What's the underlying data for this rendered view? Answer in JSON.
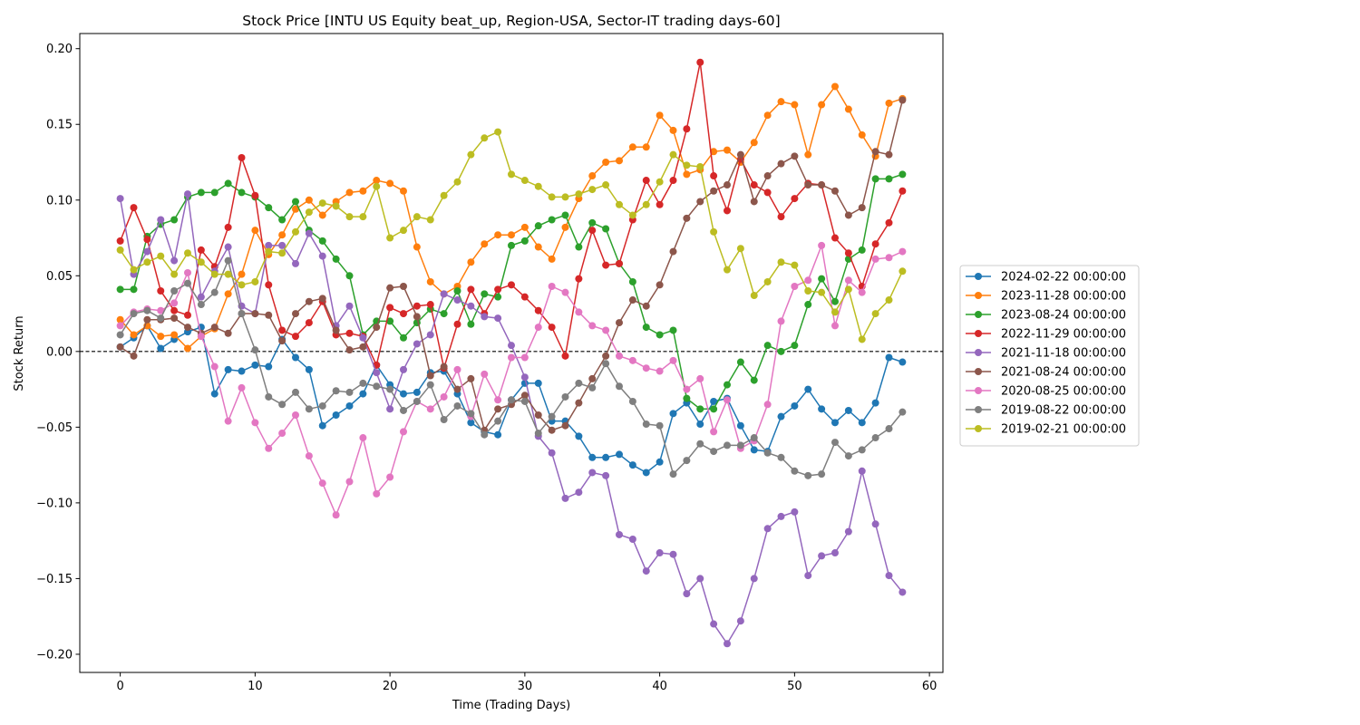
{
  "chart_data": {
    "type": "line",
    "title": "Stock Price [INTU US Equity beat_up, Region-USA, Sector-IT trading days-60]",
    "xlabel": "Time (Trading Days)",
    "ylabel": "Stock Return",
    "xlim": [
      -3,
      61
    ],
    "ylim": [
      -0.212,
      0.21
    ],
    "xticks": [
      0,
      10,
      20,
      30,
      40,
      50,
      60
    ],
    "yticks": [
      -0.2,
      -0.15,
      -0.1,
      -0.05,
      0.0,
      0.05,
      0.1,
      0.15,
      0.2
    ],
    "ytick_labels": [
      "−0.20",
      "−0.15",
      "−0.10",
      "−0.05",
      "0.00",
      "0.05",
      "0.10",
      "0.15",
      "0.20"
    ],
    "grid": false,
    "reference_line": 0,
    "legend_position": "center-right-outside",
    "series": [
      {
        "name": "2024-02-22 00:00:00",
        "color": "#1f77b4",
        "values": [
          0.003,
          0.009,
          0.017,
          0.002,
          0.008,
          0.013,
          0.016,
          -0.028,
          -0.012,
          -0.013,
          -0.009,
          -0.01,
          0.008,
          -0.004,
          -0.012,
          -0.049,
          -0.042,
          -0.036,
          -0.028,
          -0.009,
          -0.022,
          -0.028,
          -0.027,
          -0.014,
          -0.013,
          -0.028,
          -0.047,
          -0.053,
          -0.055,
          -0.032,
          -0.021,
          -0.021,
          -0.046,
          -0.046,
          -0.056,
          -0.07,
          -0.07,
          -0.068,
          -0.075,
          -0.08,
          -0.073,
          -0.041,
          -0.034,
          -0.048,
          -0.033,
          -0.031,
          -0.049,
          -0.065,
          -0.066,
          -0.043,
          -0.036,
          -0.025,
          -0.038,
          -0.047,
          -0.039,
          -0.047,
          -0.034,
          -0.004,
          -0.007
        ]
      },
      {
        "name": "2023-11-28 00:00:00",
        "color": "#ff7f0e",
        "values": [
          0.021,
          0.011,
          0.017,
          0.01,
          0.011,
          0.002,
          0.01,
          0.015,
          0.038,
          0.051,
          0.08,
          0.064,
          0.077,
          0.094,
          0.1,
          0.09,
          0.099,
          0.105,
          0.106,
          0.113,
          0.111,
          0.106,
          0.069,
          0.046,
          0.038,
          0.043,
          0.059,
          0.071,
          0.077,
          0.077,
          0.082,
          0.069,
          0.061,
          0.082,
          0.101,
          0.116,
          0.125,
          0.126,
          0.135,
          0.135,
          0.156,
          0.146,
          0.117,
          0.12,
          0.132,
          0.133,
          0.125,
          0.138,
          0.156,
          0.165,
          0.163,
          0.13,
          0.163,
          0.175,
          0.16,
          0.143,
          0.129,
          0.164,
          0.167
        ]
      },
      {
        "name": "2023-08-24 00:00:00",
        "color": "#2ca02c",
        "values": [
          0.041,
          0.041,
          0.076,
          0.084,
          0.087,
          0.102,
          0.105,
          0.105,
          0.111,
          0.105,
          0.102,
          0.095,
          0.087,
          0.099,
          0.08,
          0.073,
          0.061,
          0.05,
          0.011,
          0.02,
          0.02,
          0.009,
          0.019,
          0.028,
          0.025,
          0.04,
          0.018,
          0.038,
          0.036,
          0.07,
          0.073,
          0.083,
          0.087,
          0.09,
          0.069,
          0.085,
          0.081,
          0.058,
          0.046,
          0.016,
          0.011,
          0.014,
          -0.031,
          -0.038,
          -0.038,
          -0.022,
          -0.007,
          -0.019,
          0.004,
          0.0,
          0.004,
          0.031,
          0.048,
          0.033,
          0.061,
          0.067,
          0.114,
          0.114,
          0.117
        ]
      },
      {
        "name": "2022-11-29 00:00:00",
        "color": "#d62728",
        "values": [
          0.073,
          0.095,
          0.074,
          0.04,
          0.027,
          0.024,
          0.067,
          0.056,
          0.082,
          0.128,
          0.103,
          0.044,
          0.014,
          0.01,
          0.019,
          0.033,
          0.011,
          0.012,
          0.01,
          -0.009,
          0.029,
          0.025,
          0.03,
          0.031,
          -0.011,
          0.018,
          0.041,
          0.025,
          0.041,
          0.044,
          0.036,
          0.027,
          0.016,
          -0.003,
          0.048,
          0.08,
          0.057,
          0.058,
          0.087,
          0.113,
          0.097,
          0.113,
          0.147,
          0.191,
          0.116,
          0.093,
          0.127,
          0.11,
          0.105,
          0.089,
          0.101,
          0.111,
          0.11,
          0.075,
          0.065,
          0.043,
          0.071,
          0.085,
          0.106
        ]
      },
      {
        "name": "2021-11-18 00:00:00",
        "color": "#9467bd",
        "values": [
          0.101,
          0.051,
          0.066,
          0.087,
          0.06,
          0.104,
          0.036,
          0.053,
          0.069,
          0.03,
          0.025,
          0.07,
          0.07,
          0.058,
          0.078,
          0.063,
          0.017,
          0.03,
          0.009,
          -0.014,
          -0.038,
          -0.012,
          0.005,
          0.011,
          0.038,
          0.034,
          0.03,
          0.023,
          0.022,
          0.004,
          -0.017,
          -0.056,
          -0.067,
          -0.097,
          -0.093,
          -0.08,
          -0.082,
          -0.121,
          -0.124,
          -0.145,
          -0.133,
          -0.134,
          -0.16,
          -0.15,
          -0.18,
          -0.193,
          -0.178,
          -0.15,
          -0.117,
          -0.109,
          -0.106,
          -0.148,
          -0.135,
          -0.133,
          -0.119,
          -0.079,
          -0.114,
          -0.148,
          -0.159
        ]
      },
      {
        "name": "2021-08-24 00:00:00",
        "color": "#8c564b",
        "values": [
          0.003,
          -0.003,
          0.021,
          0.021,
          0.022,
          0.016,
          0.012,
          0.016,
          0.012,
          0.025,
          0.025,
          0.024,
          0.007,
          0.025,
          0.033,
          0.035,
          0.014,
          0.001,
          0.003,
          0.016,
          0.042,
          0.043,
          0.023,
          -0.016,
          -0.01,
          -0.025,
          -0.018,
          -0.052,
          -0.038,
          -0.035,
          -0.029,
          -0.042,
          -0.052,
          -0.049,
          -0.034,
          -0.018,
          -0.003,
          0.019,
          0.034,
          0.03,
          0.044,
          0.066,
          0.088,
          0.099,
          0.106,
          0.11,
          0.13,
          0.099,
          0.116,
          0.124,
          0.129,
          0.11,
          0.11,
          0.106,
          0.09,
          0.095,
          0.132,
          0.13,
          0.166
        ]
      },
      {
        "name": "2020-08-25 00:00:00",
        "color": "#e377c2",
        "values": [
          0.017,
          0.026,
          0.028,
          0.027,
          0.032,
          0.052,
          0.01,
          -0.01,
          -0.046,
          -0.024,
          -0.047,
          -0.064,
          -0.054,
          -0.042,
          -0.069,
          -0.087,
          -0.108,
          -0.086,
          -0.057,
          -0.094,
          -0.083,
          -0.053,
          -0.033,
          -0.038,
          -0.03,
          -0.012,
          -0.043,
          -0.015,
          -0.032,
          -0.004,
          -0.004,
          0.016,
          0.043,
          0.039,
          0.026,
          0.017,
          0.014,
          -0.003,
          -0.006,
          -0.011,
          -0.013,
          -0.006,
          -0.025,
          -0.018,
          -0.053,
          -0.032,
          -0.064,
          -0.059,
          -0.035,
          0.02,
          0.043,
          0.047,
          0.07,
          0.017,
          0.047,
          0.039,
          0.061,
          0.062,
          0.066
        ]
      },
      {
        "name": "2019-08-22 00:00:00",
        "color": "#7f7f7f",
        "values": [
          0.011,
          0.025,
          0.027,
          0.022,
          0.04,
          0.045,
          0.031,
          0.039,
          0.06,
          0.025,
          0.001,
          -0.03,
          -0.035,
          -0.027,
          -0.038,
          -0.036,
          -0.026,
          -0.027,
          -0.021,
          -0.023,
          -0.025,
          -0.039,
          -0.033,
          -0.022,
          -0.045,
          -0.036,
          -0.041,
          -0.055,
          -0.046,
          -0.032,
          -0.033,
          -0.054,
          -0.043,
          -0.03,
          -0.021,
          -0.024,
          -0.008,
          -0.023,
          -0.033,
          -0.048,
          -0.049,
          -0.081,
          -0.072,
          -0.061,
          -0.066,
          -0.062,
          -0.062,
          -0.057,
          -0.067,
          -0.07,
          -0.079,
          -0.082,
          -0.081,
          -0.06,
          -0.069,
          -0.065,
          -0.057,
          -0.051,
          -0.04
        ]
      },
      {
        "name": "2019-02-21 00:00:00",
        "color": "#bcbd22",
        "values": [
          0.067,
          0.054,
          0.059,
          0.063,
          0.051,
          0.065,
          0.059,
          0.051,
          0.051,
          0.044,
          0.046,
          0.066,
          0.065,
          0.079,
          0.092,
          0.098,
          0.096,
          0.089,
          0.089,
          0.109,
          0.075,
          0.08,
          0.089,
          0.087,
          0.103,
          0.112,
          0.13,
          0.141,
          0.145,
          0.117,
          0.113,
          0.109,
          0.102,
          0.102,
          0.104,
          0.107,
          0.11,
          0.097,
          0.09,
          0.097,
          0.112,
          0.13,
          0.123,
          0.122,
          0.079,
          0.054,
          0.068,
          0.037,
          0.046,
          0.059,
          0.057,
          0.04,
          0.039,
          0.026,
          0.041,
          0.008,
          0.025,
          0.034,
          0.053
        ]
      }
    ]
  }
}
